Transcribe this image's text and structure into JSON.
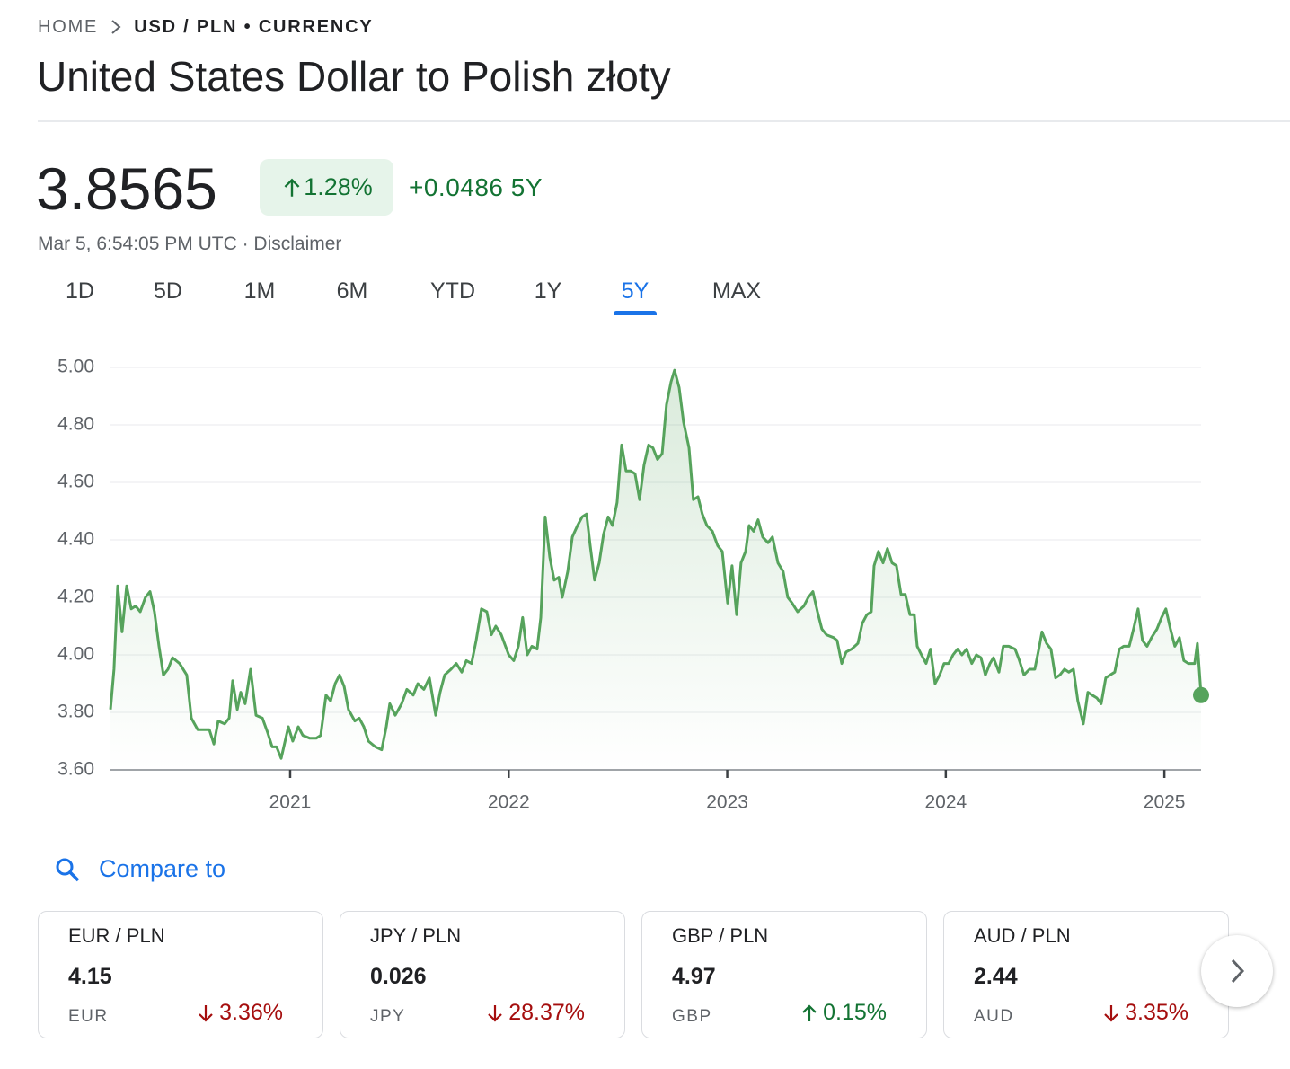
{
  "breadcrumb": {
    "home": "HOME",
    "current": "USD / PLN • CURRENCY"
  },
  "title": "United States Dollar to Polish złoty",
  "quote": {
    "price": "3.8565",
    "change_percent": "1.28%",
    "direction": "up",
    "change": "+0.0486",
    "period": "5Y",
    "timestamp": "Mar 5, 6:54:05 PM UTC · Disclaimer"
  },
  "tabs": {
    "items": [
      "1D",
      "5D",
      "1M",
      "6M",
      "YTD",
      "1Y",
      "5Y",
      "MAX"
    ],
    "active": 6
  },
  "chart_data": {
    "type": "line",
    "color": "#56a35c",
    "grid": true,
    "xlim": [
      2020.178,
      2025.168
    ],
    "xticks": [
      2021,
      2022,
      2023,
      2024,
      2025
    ],
    "ylim": [
      3.6,
      5.0
    ],
    "yticks": [
      {
        "value": 3.6,
        "label": "3.60"
      },
      {
        "value": 3.8,
        "label": "3.80"
      },
      {
        "value": 4.0,
        "label": "4.00"
      },
      {
        "value": 4.2,
        "label": "4.20"
      },
      {
        "value": 4.4,
        "label": "4.40"
      },
      {
        "value": 4.6,
        "label": "4.60"
      },
      {
        "value": 4.8,
        "label": "4.80"
      },
      {
        "value": 5.0,
        "label": "5.00"
      }
    ],
    "x": [
      2020.178,
      2020.194,
      2020.211,
      2020.231,
      2020.252,
      2020.273,
      2020.293,
      2020.314,
      2020.338,
      2020.359,
      2020.379,
      2020.4,
      2020.42,
      2020.441,
      2020.462,
      2020.494,
      2020.527,
      2020.548,
      2020.577,
      2020.605,
      2020.63,
      2020.651,
      2020.671,
      2020.7,
      2020.721,
      2020.737,
      2020.758,
      2020.774,
      2020.794,
      2020.819,
      2020.844,
      2020.873,
      2020.897,
      2020.918,
      2020.938,
      2020.959,
      2020.992,
      2021.012,
      2021.037,
      2021.058,
      2021.09,
      2021.119,
      2021.14,
      2021.164,
      2021.185,
      2021.206,
      2021.226,
      2021.247,
      2021.267,
      2021.296,
      2021.316,
      2021.337,
      2021.358,
      2021.39,
      2021.419,
      2021.44,
      2021.456,
      2021.481,
      2021.51,
      2021.534,
      2021.563,
      2021.584,
      2021.612,
      2021.637,
      2021.666,
      2021.686,
      2021.707,
      2021.736,
      2021.76,
      2021.785,
      2021.806,
      2021.83,
      2021.851,
      2021.875,
      2021.9,
      2021.921,
      2021.941,
      2021.966,
      2022,
      2022.023,
      2022.044,
      2022.064,
      2022.085,
      2022.106,
      2022.13,
      2022.147,
      2022.167,
      2022.188,
      2022.208,
      2022.229,
      2022.245,
      2022.27,
      2022.291,
      2022.315,
      2022.336,
      2022.356,
      2022.373,
      2022.393,
      2022.414,
      2022.434,
      2022.455,
      2022.475,
      2022.496,
      2022.517,
      2022.537,
      2022.558,
      2022.578,
      2022.599,
      2022.619,
      2022.64,
      2022.66,
      2022.681,
      2022.702,
      2022.722,
      2022.743,
      2022.759,
      2022.78,
      2022.8,
      2022.825,
      2022.845,
      2022.866,
      2022.886,
      2022.907,
      2022.932,
      2022.956,
      2022.977,
      2023.002,
      2023.022,
      2023.043,
      2023.063,
      2023.084,
      2023.1,
      2023.121,
      2023.141,
      2023.162,
      2023.187,
      2023.207,
      2023.232,
      2023.256,
      2023.277,
      2023.297,
      2023.322,
      2023.351,
      2023.371,
      2023.392,
      2023.413,
      2023.433,
      2023.454,
      2023.487,
      2023.503,
      2023.524,
      2023.544,
      2023.569,
      2023.598,
      2023.618,
      2023.639,
      2023.659,
      2023.672,
      2023.692,
      2023.713,
      2023.733,
      2023.754,
      2023.774,
      2023.795,
      2023.815,
      2023.836,
      2023.856,
      2023.869,
      2023.889,
      2023.91,
      2023.93,
      2023.951,
      2023.972,
      2023.992,
      2024.013,
      2024.033,
      2024.054,
      2024.074,
      2024.095,
      2024.119,
      2024.14,
      2024.161,
      2024.181,
      2024.202,
      2024.218,
      2024.243,
      2024.263,
      2024.288,
      2024.317,
      2024.337,
      2024.358,
      2024.383,
      2024.407,
      2024.428,
      2024.44,
      2024.461,
      2024.481,
      2024.502,
      2024.522,
      2024.543,
      2024.563,
      2024.584,
      2024.604,
      2024.629,
      2024.65,
      2024.67,
      2024.691,
      2024.711,
      2024.732,
      2024.752,
      2024.773,
      2024.794,
      2024.814,
      2024.839,
      2024.859,
      2024.88,
      2024.9,
      2024.921,
      2024.941,
      2024.966,
      2024.987,
      2025.007,
      2025.028,
      2025.048,
      2025.069,
      2025.089,
      2025.11,
      2025.139,
      2025.151,
      2025.168
    ],
    "values": [
      3.81,
      3.95,
      4.24,
      4.08,
      4.24,
      4.16,
      4.17,
      4.15,
      4.2,
      4.22,
      4.15,
      4.03,
      3.93,
      3.95,
      3.99,
      3.97,
      3.93,
      3.78,
      3.74,
      3.74,
      3.74,
      3.69,
      3.77,
      3.76,
      3.78,
      3.91,
      3.81,
      3.87,
      3.83,
      3.95,
      3.79,
      3.78,
      3.73,
      3.68,
      3.68,
      3.64,
      3.75,
      3.7,
      3.75,
      3.72,
      3.71,
      3.71,
      3.72,
      3.86,
      3.84,
      3.9,
      3.93,
      3.89,
      3.81,
      3.77,
      3.78,
      3.75,
      3.7,
      3.68,
      3.67,
      3.75,
      3.83,
      3.79,
      3.83,
      3.88,
      3.86,
      3.9,
      3.88,
      3.92,
      3.79,
      3.87,
      3.93,
      3.95,
      3.97,
      3.94,
      3.98,
      3.97,
      4.05,
      4.16,
      4.15,
      4.07,
      4.1,
      4.07,
      4,
      3.98,
      4.03,
      4.13,
      4,
      4.03,
      4.02,
      4.13,
      4.48,
      4.34,
      4.26,
      4.27,
      4.2,
      4.29,
      4.41,
      4.45,
      4.48,
      4.49,
      4.38,
      4.26,
      4.32,
      4.42,
      4.48,
      4.45,
      4.53,
      4.73,
      4.64,
      4.64,
      4.63,
      4.54,
      4.66,
      4.73,
      4.72,
      4.68,
      4.7,
      4.87,
      4.95,
      4.99,
      4.93,
      4.81,
      4.72,
      4.54,
      4.55,
      4.49,
      4.45,
      4.43,
      4.38,
      4.36,
      4.18,
      4.31,
      4.14,
      4.32,
      4.36,
      4.45,
      4.43,
      4.47,
      4.41,
      4.39,
      4.41,
      4.32,
      4.29,
      4.2,
      4.18,
      4.15,
      4.17,
      4.2,
      4.22,
      4.15,
      4.09,
      4.07,
      4.06,
      4.05,
      3.97,
      4.01,
      4.02,
      4.04,
      4.11,
      4.14,
      4.15,
      4.31,
      4.36,
      4.32,
      4.37,
      4.32,
      4.31,
      4.21,
      4.21,
      4.14,
      4.14,
      4.03,
      4,
      3.97,
      4.02,
      3.9,
      3.93,
      3.97,
      3.97,
      4,
      4.02,
      4,
      4.02,
      3.97,
      4,
      3.99,
      3.93,
      3.97,
      3.99,
      3.94,
      4.03,
      4.03,
      4.02,
      3.98,
      3.93,
      3.95,
      3.95,
      4.03,
      4.08,
      4.04,
      4.02,
      3.92,
      3.93,
      3.95,
      3.94,
      3.95,
      3.84,
      3.76,
      3.87,
      3.86,
      3.85,
      3.83,
      3.92,
      3.93,
      3.94,
      4.02,
      4.03,
      4.03,
      4.09,
      4.16,
      4.05,
      4.03,
      4.06,
      4.09,
      4.13,
      4.16,
      4.09,
      4.03,
      4.06,
      3.98,
      3.97,
      3.97,
      4.04,
      3.86
    ]
  },
  "compare": {
    "label": "Compare to",
    "cards": [
      {
        "pair": "EUR / PLN",
        "price": "4.15",
        "code": "EUR",
        "change": "3.36%",
        "direction": "down"
      },
      {
        "pair": "JPY / PLN",
        "price": "0.026",
        "code": "JPY",
        "change": "28.37%",
        "direction": "down"
      },
      {
        "pair": "GBP / PLN",
        "price": "4.97",
        "code": "GBP",
        "change": "0.15%",
        "direction": "up"
      },
      {
        "pair": "AUD / PLN",
        "price": "2.44",
        "code": "AUD",
        "change": "3.35%",
        "direction": "down"
      }
    ]
  }
}
